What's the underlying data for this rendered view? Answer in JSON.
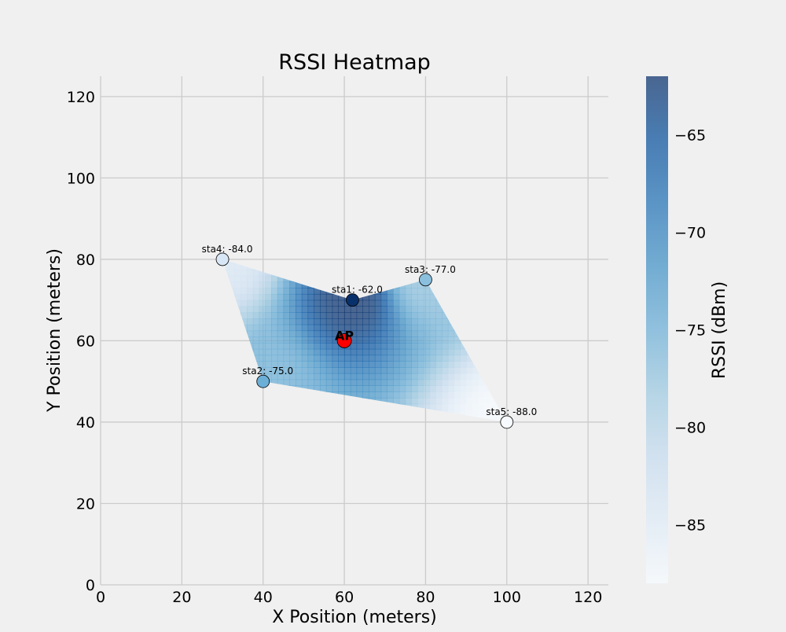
{
  "chart_data": {
    "type": "heatmap",
    "title": "RSSI Heatmap",
    "xlabel": "X Position (meters)",
    "ylabel": "Y Position (meters)",
    "xlim": [
      0,
      125
    ],
    "ylim": [
      0,
      125
    ],
    "xticks": [
      0,
      20,
      40,
      60,
      80,
      100,
      120
    ],
    "yticks": [
      0,
      20,
      40,
      60,
      80,
      100,
      120
    ],
    "grid": true,
    "colorbar": {
      "label": "RSSI (dBm)",
      "range": [
        -88,
        -62
      ],
      "ticks": [
        -85,
        -80,
        -75,
        -70,
        -65
      ],
      "tick_labels": [
        "−85",
        "−80",
        "−75",
        "−70",
        "−65"
      ],
      "colormap": [
        "#f7fbff",
        "#deebf7",
        "#c6dbef",
        "#9ecae1",
        "#6baed6",
        "#4292c6",
        "#2171b5",
        "#08519c",
        "#08306b"
      ]
    },
    "region": [
      [
        30,
        80
      ],
      [
        62,
        70
      ],
      [
        80,
        75
      ],
      [
        100,
        40
      ],
      [
        40,
        50
      ]
    ],
    "access_point": {
      "label": "AP",
      "x": 60,
      "y": 60,
      "color": "#ff0000"
    },
    "stations": [
      {
        "name": "sta1",
        "x": 62,
        "y": 70,
        "rssi": -62.0,
        "label": "sta1: -62.0"
      },
      {
        "name": "sta2",
        "x": 40,
        "y": 50,
        "rssi": -75.0,
        "label": "sta2: -75.0"
      },
      {
        "name": "sta3",
        "x": 80,
        "y": 75,
        "rssi": -77.0,
        "label": "sta3: -77.0"
      },
      {
        "name": "sta4",
        "x": 30,
        "y": 80,
        "rssi": -84.0,
        "label": "sta4: -84.0"
      },
      {
        "name": "sta5",
        "x": 100,
        "y": 40,
        "rssi": -88.0,
        "label": "sta5: -88.0"
      }
    ]
  }
}
